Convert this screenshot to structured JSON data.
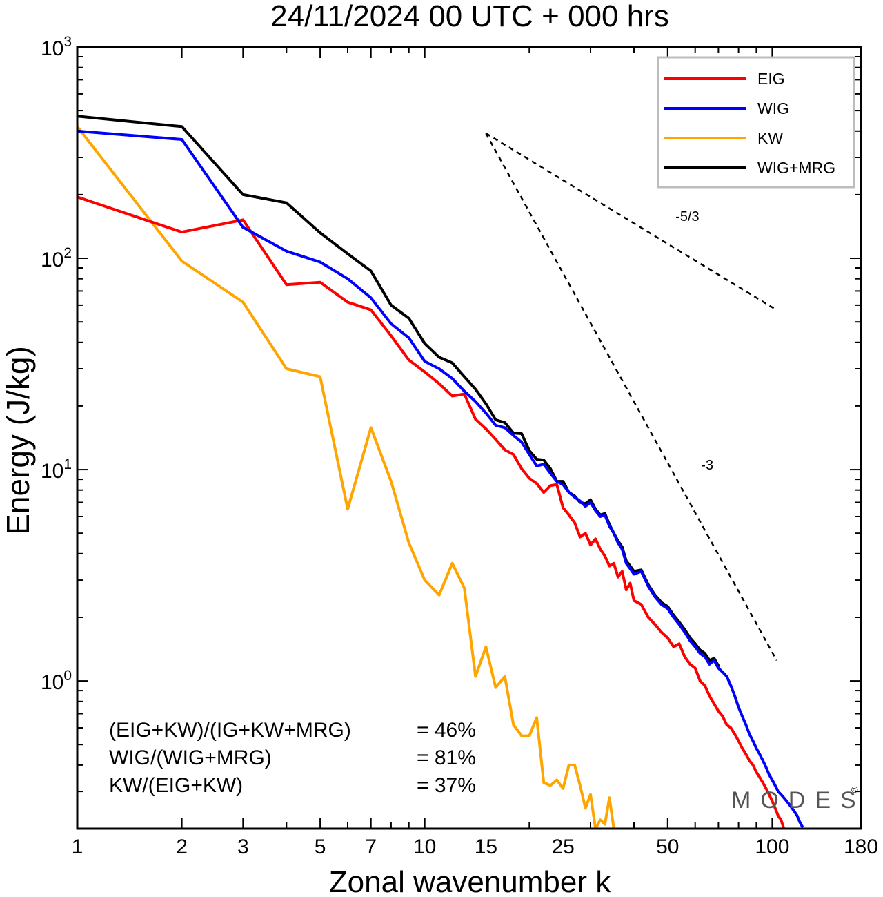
{
  "chart_data": {
    "type": "line",
    "title": "24/11/2024  00 UTC  + 000 hrs",
    "xlabel": "Zonal wavenumber k",
    "ylabel": "Energy (J/kg)",
    "x_scale": "log",
    "y_scale": "log",
    "xlim": [
      1,
      180
    ],
    "ylim": [
      0.2,
      1000
    ],
    "x_ticks": [
      {
        "value": 1,
        "label": "1"
      },
      {
        "value": 2,
        "label": "2"
      },
      {
        "value": 3,
        "label": "3"
      },
      {
        "value": 5,
        "label": "5"
      },
      {
        "value": 7,
        "label": "7"
      },
      {
        "value": 10,
        "label": "10"
      },
      {
        "value": 15,
        "label": "15"
      },
      {
        "value": 25,
        "label": "25"
      },
      {
        "value": 50,
        "label": "50"
      },
      {
        "value": 100,
        "label": "100"
      },
      {
        "value": 180,
        "label": "180"
      }
    ],
    "y_ticks": [
      {
        "value": 1,
        "base": "10",
        "exp": "0"
      },
      {
        "value": 10,
        "base": "10",
        "exp": "1"
      },
      {
        "value": 100,
        "base": "10",
        "exp": "2"
      },
      {
        "value": 1000,
        "base": "10",
        "exp": "3"
      }
    ],
    "grid": false,
    "legend_position": "top-right",
    "series": [
      {
        "name": "EIG",
        "color": "#ff0000",
        "points": [
          [
            1,
            195
          ],
          [
            2,
            133
          ],
          [
            3,
            152
          ],
          [
            4,
            75
          ],
          [
            5,
            77
          ],
          [
            6,
            62
          ],
          [
            7,
            57
          ],
          [
            8,
            43
          ],
          [
            9,
            33
          ],
          [
            10,
            29
          ],
          [
            11,
            25.5
          ],
          [
            12,
            22.3
          ],
          [
            13,
            22.8
          ],
          [
            14,
            17.3
          ],
          [
            15,
            15.6
          ],
          [
            16,
            13.9
          ],
          [
            17,
            12.4
          ],
          [
            18,
            11.8
          ],
          [
            19,
            10.1
          ],
          [
            20,
            9.1
          ],
          [
            21,
            8.6
          ],
          [
            22,
            7.8
          ],
          [
            23,
            8.4
          ],
          [
            24,
            8.5
          ],
          [
            25,
            6.6
          ],
          [
            26,
            6.1
          ],
          [
            27,
            5.6
          ],
          [
            28,
            4.8
          ],
          [
            29,
            5.0
          ],
          [
            30,
            4.4
          ],
          [
            31,
            4.7
          ],
          [
            32,
            4.2
          ],
          [
            33,
            3.9
          ],
          [
            34,
            3.5
          ],
          [
            35,
            3.6
          ],
          [
            36,
            3.1
          ],
          [
            37,
            3.3
          ],
          [
            38,
            2.7
          ],
          [
            39,
            2.9
          ],
          [
            40,
            2.4
          ],
          [
            42,
            2.3
          ],
          [
            44,
            2.0
          ],
          [
            46,
            1.85
          ],
          [
            48,
            1.7
          ],
          [
            50,
            1.6
          ],
          [
            52,
            1.45
          ],
          [
            54,
            1.5
          ],
          [
            56,
            1.3
          ],
          [
            58,
            1.2
          ],
          [
            60,
            1.15
          ],
          [
            62,
            1.0
          ],
          [
            64,
            0.95
          ],
          [
            66,
            0.85
          ],
          [
            68,
            0.78
          ],
          [
            70,
            0.72
          ],
          [
            72,
            0.68
          ],
          [
            74,
            0.62
          ],
          [
            76,
            0.6
          ],
          [
            78,
            0.56
          ],
          [
            80,
            0.52
          ],
          [
            82,
            0.48
          ],
          [
            84,
            0.45
          ],
          [
            86,
            0.42
          ],
          [
            88,
            0.4
          ],
          [
            90,
            0.37
          ],
          [
            92,
            0.35
          ],
          [
            94,
            0.33
          ],
          [
            96,
            0.31
          ],
          [
            98,
            0.29
          ],
          [
            100,
            0.27
          ],
          [
            102,
            0.25
          ],
          [
            104,
            0.23
          ],
          [
            106,
            0.22
          ],
          [
            108,
            0.2
          ]
        ]
      },
      {
        "name": "WIG",
        "color": "#0000ff",
        "points": [
          [
            1,
            400
          ],
          [
            2,
            365
          ],
          [
            3,
            140
          ],
          [
            4,
            108
          ],
          [
            5,
            96
          ],
          [
            6,
            80
          ],
          [
            7,
            65
          ],
          [
            8,
            49
          ],
          [
            9,
            42
          ],
          [
            10,
            32.5
          ],
          [
            11,
            30
          ],
          [
            12,
            27
          ],
          [
            13,
            23.5
          ],
          [
            14,
            21
          ],
          [
            15,
            18.5
          ],
          [
            16,
            16.2
          ],
          [
            17,
            15.8
          ],
          [
            18,
            14.5
          ],
          [
            19,
            13.5
          ],
          [
            20,
            11.8
          ],
          [
            21,
            10.4
          ],
          [
            22,
            10.6
          ],
          [
            23,
            9.6
          ],
          [
            24,
            8.8
          ],
          [
            25,
            8.5
          ],
          [
            26,
            7.8
          ],
          [
            27,
            7.4
          ],
          [
            28,
            7.1
          ],
          [
            29,
            6.7
          ],
          [
            30,
            7.0
          ],
          [
            31,
            6.4
          ],
          [
            32,
            6.0
          ],
          [
            33,
            6.1
          ],
          [
            34,
            5.4
          ],
          [
            35,
            5.0
          ],
          [
            36,
            4.5
          ],
          [
            37,
            4.2
          ],
          [
            38,
            3.6
          ],
          [
            39,
            3.4
          ],
          [
            40,
            3.2
          ],
          [
            42,
            3.3
          ],
          [
            44,
            2.8
          ],
          [
            46,
            2.5
          ],
          [
            48,
            2.3
          ],
          [
            50,
            2.2
          ],
          [
            52,
            2.0
          ],
          [
            54,
            1.85
          ],
          [
            56,
            1.7
          ],
          [
            58,
            1.55
          ],
          [
            60,
            1.45
          ],
          [
            62,
            1.35
          ],
          [
            64,
            1.3
          ],
          [
            66,
            1.2
          ],
          [
            68,
            1.25
          ],
          [
            70,
            1.15
          ],
          [
            72,
            1.1
          ],
          [
            74,
            1.05
          ],
          [
            76,
            0.95
          ],
          [
            78,
            0.85
          ],
          [
            80,
            0.75
          ],
          [
            82,
            0.68
          ],
          [
            84,
            0.62
          ],
          [
            86,
            0.56
          ],
          [
            88,
            0.52
          ],
          [
            90,
            0.48
          ],
          [
            92,
            0.45
          ],
          [
            94,
            0.42
          ],
          [
            96,
            0.39
          ],
          [
            98,
            0.36
          ],
          [
            100,
            0.34
          ],
          [
            102,
            0.32
          ],
          [
            104,
            0.3
          ],
          [
            106,
            0.29
          ],
          [
            108,
            0.28
          ],
          [
            110,
            0.27
          ],
          [
            112,
            0.26
          ],
          [
            114,
            0.25
          ],
          [
            116,
            0.24
          ],
          [
            118,
            0.23
          ],
          [
            120,
            0.215
          ],
          [
            122,
            0.205
          ]
        ]
      },
      {
        "name": "KW",
        "color": "#ffa500",
        "points": [
          [
            1,
            420
          ],
          [
            2,
            97
          ],
          [
            3,
            62
          ],
          [
            4,
            30
          ],
          [
            5,
            27.5
          ],
          [
            6,
            6.5
          ],
          [
            7,
            15.8
          ],
          [
            8,
            8.8
          ],
          [
            9,
            4.5
          ],
          [
            10,
            3.0
          ],
          [
            11,
            2.55
          ],
          [
            12,
            3.6
          ],
          [
            13,
            2.75
          ],
          [
            14,
            1.05
          ],
          [
            15,
            1.45
          ],
          [
            16,
            0.93
          ],
          [
            17,
            1.05
          ],
          [
            18,
            0.62
          ],
          [
            19,
            0.55
          ],
          [
            20,
            0.55
          ],
          [
            21,
            0.67
          ],
          [
            22,
            0.33
          ],
          [
            23,
            0.32
          ],
          [
            24,
            0.34
          ],
          [
            25,
            0.31
          ],
          [
            26,
            0.4
          ],
          [
            27,
            0.4
          ],
          [
            28,
            0.32
          ],
          [
            29,
            0.25
          ],
          [
            30,
            0.29
          ],
          [
            31,
            0.2
          ],
          [
            32,
            0.22
          ],
          [
            33,
            0.21
          ],
          [
            34,
            0.28
          ],
          [
            35,
            0.2
          ]
        ]
      },
      {
        "name": "WIG+MRG",
        "color": "#000000",
        "points": [
          [
            1,
            470
          ],
          [
            2,
            420
          ],
          [
            3,
            200
          ],
          [
            4,
            183
          ],
          [
            5,
            132
          ],
          [
            6,
            105
          ],
          [
            7,
            87
          ],
          [
            8,
            60
          ],
          [
            9,
            52
          ],
          [
            10,
            39.5
          ],
          [
            11,
            34
          ],
          [
            12,
            32
          ],
          [
            13,
            27.5
          ],
          [
            14,
            24
          ],
          [
            15,
            20.5
          ],
          [
            16,
            17.2
          ],
          [
            17,
            16.7
          ],
          [
            18,
            14.9
          ],
          [
            19,
            14.8
          ],
          [
            20,
            12.3
          ],
          [
            21,
            11.2
          ],
          [
            22,
            11.1
          ],
          [
            23,
            10.1
          ],
          [
            24,
            8.8
          ],
          [
            25,
            8.8
          ],
          [
            26,
            7.8
          ],
          [
            27,
            7.5
          ],
          [
            28,
            7.0
          ],
          [
            29,
            6.9
          ],
          [
            30,
            7.2
          ],
          [
            31,
            6.5
          ],
          [
            32,
            6.1
          ],
          [
            33,
            6.2
          ],
          [
            34,
            5.5
          ],
          [
            35,
            5.0
          ],
          [
            36,
            4.6
          ],
          [
            37,
            4.3
          ],
          [
            38,
            3.7
          ],
          [
            39,
            3.5
          ],
          [
            40,
            3.3
          ],
          [
            42,
            3.35
          ],
          [
            44,
            2.85
          ],
          [
            46,
            2.55
          ],
          [
            48,
            2.35
          ],
          [
            50,
            2.25
          ],
          [
            52,
            2.05
          ],
          [
            54,
            1.9
          ],
          [
            56,
            1.75
          ],
          [
            58,
            1.6
          ],
          [
            60,
            1.5
          ],
          [
            62,
            1.4
          ],
          [
            64,
            1.35
          ],
          [
            66,
            1.25
          ],
          [
            68,
            1.28
          ],
          [
            70,
            1.18
          ]
        ]
      }
    ],
    "reference_lines": [
      {
        "label": "-5/3",
        "slope": -1.6667,
        "start": [
          15,
          390
        ],
        "end": [
          101,
          58
        ],
        "label_at": [
          57,
          150
        ]
      },
      {
        "label": "-3",
        "slope": -3,
        "start": [
          15,
          390
        ],
        "end": [
          103,
          1.25
        ],
        "label_at": [
          65,
          10
        ]
      }
    ],
    "ratios": [
      {
        "label": "(EIG+KW)/(IG+KW+MRG)",
        "value": "= 46%"
      },
      {
        "label": "WIG/(WIG+MRG)",
        "value": "= 81%"
      },
      {
        "label": "KW/(EIG+KW)",
        "value": "= 37%"
      }
    ],
    "watermark": "MODES",
    "watermark_symbol": "©"
  }
}
